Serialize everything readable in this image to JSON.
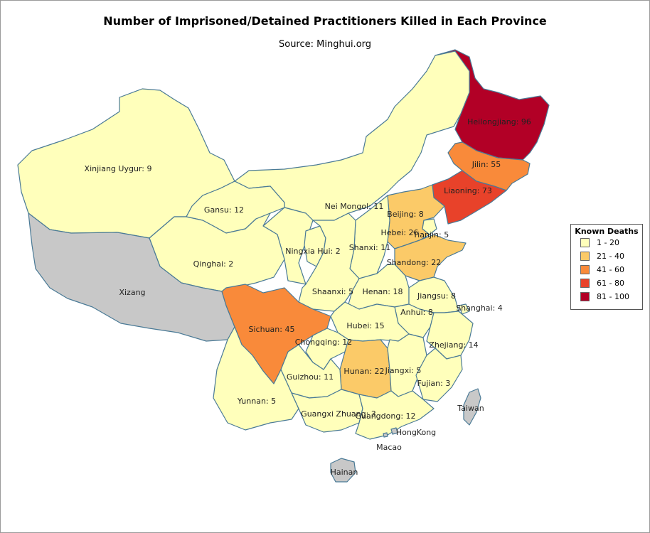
{
  "title": "Number of Imprisoned/Detained Practitioners Killed in Each Province",
  "subtitle": "Source: Minghui.org",
  "legend": {
    "title": "Known Deaths",
    "items": [
      {
        "label": "1 - 20",
        "color": "#ffffbb"
      },
      {
        "label": "21 - 40",
        "color": "#fbca68"
      },
      {
        "label": "41 - 60",
        "color": "#f98a3a"
      },
      {
        "label": "61 - 80",
        "color": "#e8422a"
      },
      {
        "label": "81 - 100",
        "color": "#b20026"
      }
    ]
  },
  "no_data_color": "#c8c8c8",
  "provinces": [
    {
      "name": "Heilongjiang",
      "deaths": 96,
      "label": "Heilongjiang: 96"
    },
    {
      "name": "Jilin",
      "deaths": 55,
      "label": "Jilin: 55"
    },
    {
      "name": "Liaoning",
      "deaths": 73,
      "label": "Liaoning: 73"
    },
    {
      "name": "Nei Mongol",
      "deaths": 11,
      "label": "Nei Mongol: 11"
    },
    {
      "name": "Beijing",
      "deaths": 8,
      "label": "Beijing: 8"
    },
    {
      "name": "Hebei",
      "deaths": 26,
      "label": "Hebei: 26"
    },
    {
      "name": "Tianjin",
      "deaths": 5,
      "label": "Tianjin: 5"
    },
    {
      "name": "Shanxi",
      "deaths": 11,
      "label": "Shanxi: 11"
    },
    {
      "name": "Shandong",
      "deaths": 22,
      "label": "Shandong: 22"
    },
    {
      "name": "Xinjiang Uygur",
      "deaths": 9,
      "label": "Xinjiang Uygur: 9"
    },
    {
      "name": "Gansu",
      "deaths": 12,
      "label": "Gansu: 12"
    },
    {
      "name": "Ningxia Hui",
      "deaths": 2,
      "label": "Ningxia Hui: 2"
    },
    {
      "name": "Qinghai",
      "deaths": 2,
      "label": "Qinghai: 2"
    },
    {
      "name": "Xizang",
      "deaths": null,
      "label": "Xizang"
    },
    {
      "name": "Shaanxi",
      "deaths": 5,
      "label": "Shaanxi: 5"
    },
    {
      "name": "Henan",
      "deaths": 18,
      "label": "Henan: 18"
    },
    {
      "name": "Jiangsu",
      "deaths": 8,
      "label": "Jiangsu: 8"
    },
    {
      "name": "Anhui",
      "deaths": 8,
      "label": "Anhui: 8"
    },
    {
      "name": "Shanghai",
      "deaths": 4,
      "label": "Shanghai: 4"
    },
    {
      "name": "Sichuan",
      "deaths": 45,
      "label": "Sichuan: 45"
    },
    {
      "name": "Hubei",
      "deaths": 15,
      "label": "Hubei: 15"
    },
    {
      "name": "Chongqing",
      "deaths": 12,
      "label": "Chongqing: 12"
    },
    {
      "name": "Zhejiang",
      "deaths": 14,
      "label": "Zhejiang: 14"
    },
    {
      "name": "Hunan",
      "deaths": 22,
      "label": "Hunan: 22"
    },
    {
      "name": "Jiangxi",
      "deaths": 5,
      "label": "Jiangxi: 5"
    },
    {
      "name": "Guizhou",
      "deaths": 11,
      "label": "Guizhou: 11"
    },
    {
      "name": "Fujian",
      "deaths": 3,
      "label": "Fujian: 3"
    },
    {
      "name": "Yunnan",
      "deaths": 5,
      "label": "Yunnan: 5"
    },
    {
      "name": "Guangxi Zhuang",
      "deaths": 3,
      "label": "Guangxi Zhuang: 3"
    },
    {
      "name": "Guangdong",
      "deaths": 12,
      "label": "Guangdong: 12"
    },
    {
      "name": "Taiwan",
      "deaths": null,
      "label": "Taiwan"
    },
    {
      "name": "HongKong",
      "deaths": null,
      "label": "HongKong"
    },
    {
      "name": "Macao",
      "deaths": null,
      "label": "Macao"
    },
    {
      "name": "Hainan",
      "deaths": null,
      "label": "Hainan"
    }
  ]
}
